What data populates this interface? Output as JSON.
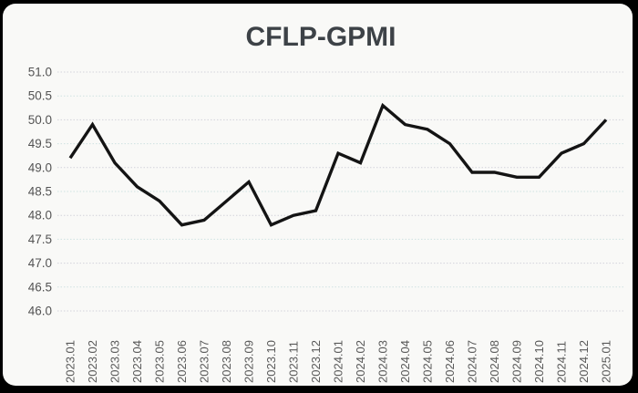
{
  "title": "CFLP-GPMI",
  "colors": {
    "frame": "#000000",
    "panel": "#f9f9f7",
    "title_text": "#3d4247",
    "ytick_text": "#545454",
    "xtick_text": "#595959",
    "series_line": "#141414",
    "grid_integer": "#d3d3db",
    "grid_half": "#cfe2e2"
  },
  "chart_data": {
    "type": "line",
    "title": "CFLP-GPMI",
    "xlabel": "",
    "ylabel": "",
    "categories": [
      "2023.01",
      "2023.02",
      "2023.03",
      "2023.04",
      "2023.05",
      "2023.06",
      "2023.07",
      "2023.08",
      "2023.09",
      "2023.10",
      "2023.11",
      "2023.12",
      "2024.01",
      "2024.02",
      "2024.03",
      "2024.04",
      "2024.05",
      "2024.06",
      "2024.07",
      "2024.08",
      "2024.09",
      "2024.10",
      "2024.11",
      "2024.12",
      "2025.01"
    ],
    "values": [
      49.2,
      49.9,
      49.1,
      48.6,
      48.3,
      47.8,
      47.9,
      48.3,
      48.7,
      47.8,
      48.0,
      48.1,
      49.3,
      49.1,
      50.3,
      49.9,
      49.8,
      49.5,
      48.9,
      48.9,
      48.8,
      48.8,
      49.3,
      49.5,
      50.0
    ],
    "ylim": [
      46.0,
      51.0
    ],
    "ytick_step": 0.5,
    "ytick_labels": [
      "46.0",
      "46.5",
      "47.0",
      "47.5",
      "48.0",
      "48.5",
      "49.0",
      "49.5",
      "50.0",
      "50.5",
      "51.0"
    ],
    "grid": "horizontal-dotted",
    "legend": "none",
    "x_label_rotation_deg": -90
  }
}
